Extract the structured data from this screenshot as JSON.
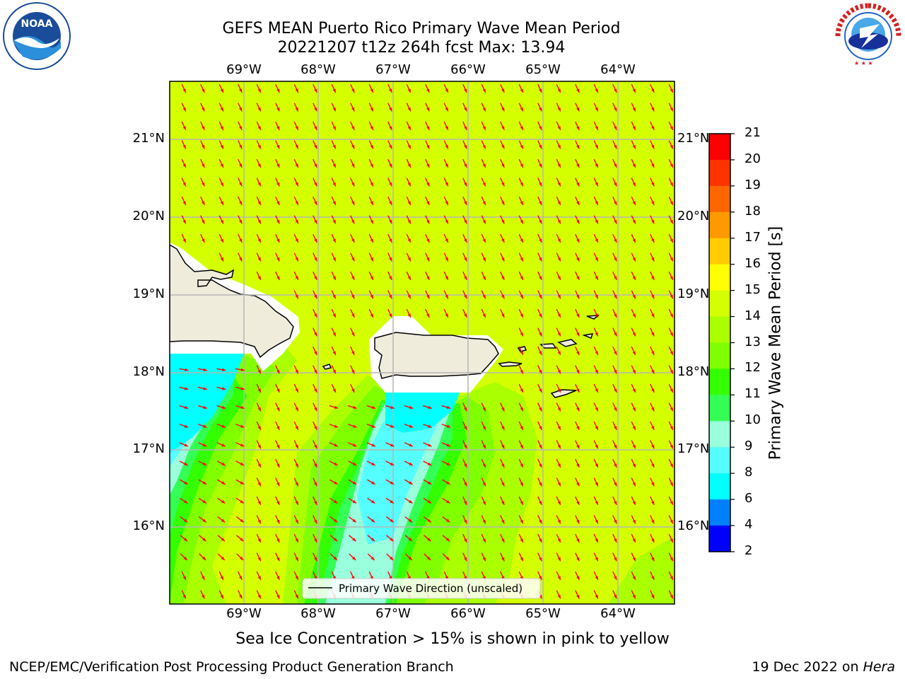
{
  "header": {
    "title_line1": "GEFS MEAN Puerto Rico Primary Wave Mean Period",
    "title_line2": "20221207 t12z 264h fcst   Max: 13.94"
  },
  "logos": {
    "left": {
      "text": "NOAA",
      "ring_text": "NATIONAL OCEANIC AND ATMOSPHERIC ADMINISTRATION · U.S. DEPARTMENT OF COMMERCE"
    },
    "right": {
      "ring_text": "NATIONAL WEATHER SERVICE"
    }
  },
  "map": {
    "lon_labels": [
      "69°W",
      "68°W",
      "67°W",
      "66°W",
      "65°W",
      "64°W"
    ],
    "lat_labels": [
      "21°N",
      "20°N",
      "19°N",
      "18°N",
      "17°N",
      "16°N"
    ],
    "field_color": "#d4ff00",
    "arrow_color": "#ff0000",
    "land_color": "#efecdc",
    "legend_label": "Primary Wave Direction (unscaled)"
  },
  "colorbar": {
    "title": "Primary Wave Mean Period [s]",
    "ticks": [
      "21",
      "20",
      "19",
      "18",
      "17",
      "16",
      "15",
      "14",
      "13",
      "12",
      "11",
      "10",
      "9",
      "8",
      "6",
      "4",
      "2"
    ],
    "colors": [
      "#ff0000",
      "#ff3300",
      "#ff6600",
      "#ff9900",
      "#ffcc00",
      "#ffff00",
      "#d4ff00",
      "#aaff00",
      "#80ff00",
      "#33ff00",
      "#33ff55",
      "#99ffdd",
      "#55ffff",
      "#00ffff",
      "#0080ff",
      "#0000ff"
    ]
  },
  "footer": {
    "note": "Sea Ice Concentration > 15% is shown in pink to yellow",
    "left": "NCEP/EMC/Verification Post Processing Product Generation Branch",
    "right_date": "19 Dec 2022 on ",
    "right_machine": "Hera"
  }
}
